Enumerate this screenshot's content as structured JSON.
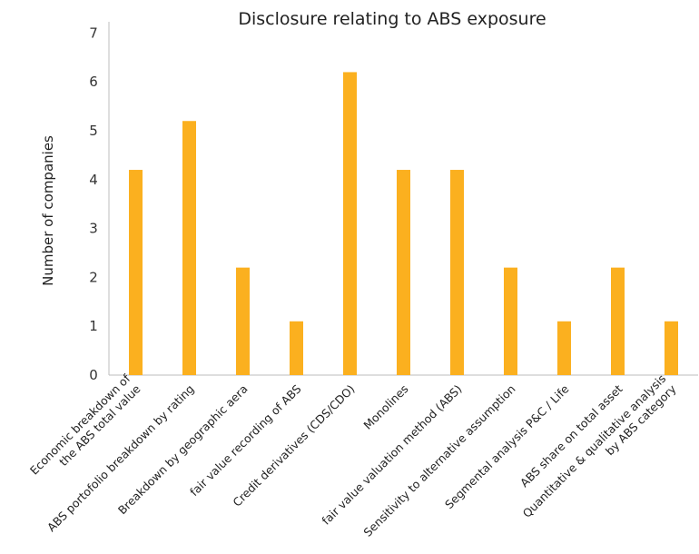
{
  "chart_data": {
    "type": "bar",
    "title": "Disclosure relating to ABS exposure",
    "xlabel": "",
    "ylabel": "Number of companies",
    "ylim": [
      0,
      7
    ],
    "yticks": [
      "0",
      "1",
      "2",
      "3",
      "4",
      "5",
      "6",
      "7"
    ],
    "grid": false,
    "legend": "none",
    "bar_color": "#FBB01F",
    "categories": [
      [
        "Economic breakdown of",
        "the ABS total value"
      ],
      [
        "ABS portofolio breakdown by rating"
      ],
      [
        "Breakdown by geographic aera"
      ],
      [
        "fair value recording of ABS"
      ],
      [
        "Credit derivatives (CDS/CDO)"
      ],
      [
        "Monolines"
      ],
      [
        "fair value valuation method (ABS)"
      ],
      [
        "Sensitivity to alternative assumption"
      ],
      [
        "Segmental analysis P&C / Life"
      ],
      [
        "ABS share on total asset"
      ],
      [
        "Quantitative & qualitative analysis",
        "by ABS category"
      ]
    ],
    "values": [
      4.2,
      5.2,
      2.2,
      1.1,
      6.2,
      4.2,
      4.2,
      2.2,
      1.1,
      2.2,
      1.1
    ]
  }
}
